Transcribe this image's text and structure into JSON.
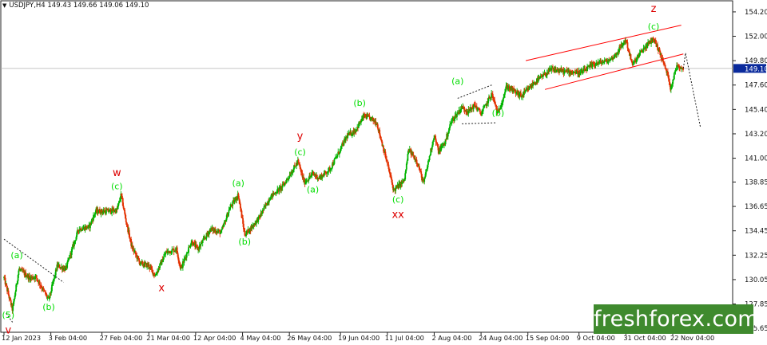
{
  "header": {
    "symbol_line": "USDJPY,H4  149.43 149.66 149.06 149.10",
    "triangle_icon": "triangle-down-icon"
  },
  "logo": {
    "text": "freshforex.com",
    "background": "#3f8a2e"
  },
  "chart_data": {
    "type": "candlestick",
    "symbol": "USDJPY",
    "timeframe": "H4",
    "ohlc_last": {
      "open": 149.43,
      "high": 149.66,
      "low": 149.06,
      "close": 149.1
    },
    "current_price": 149.1,
    "ylim": [
      125.3,
      155.2
    ],
    "y_ticks": [
      154.2,
      152.0,
      149.8,
      147.6,
      145.4,
      143.2,
      141.0,
      138.85,
      136.65,
      134.45,
      132.25,
      130.05,
      127.85,
      125.65
    ],
    "x_ticks": [
      "12 Jan 2023",
      "3 Feb 04:00",
      "27 Feb 04:00",
      "21 Mar 04:00",
      "12 Apr 04:00",
      "4 May 04:00",
      "26 May 04:00",
      "19 Jun 04:00",
      "11 Jul 04:00",
      "2 Aug 04:00",
      "24 Aug 04:00",
      "15 Sep 04:00",
      "9 Oct 04:00",
      "31 Oct 04:00",
      "22 Nov 04:00"
    ],
    "x_tick_dates": [
      "2023-01-12",
      "2023-02-03",
      "2023-02-27",
      "2023-03-21",
      "2023-04-12",
      "2023-05-04",
      "2023-05-26",
      "2023-06-19",
      "2023-07-11",
      "2023-08-02",
      "2023-08-24",
      "2023-09-15",
      "2023-10-09",
      "2023-10-31",
      "2023-11-22"
    ],
    "price_path": [
      [
        "2023-01-12",
        130.2
      ],
      [
        "2023-01-16",
        127.3
      ],
      [
        "2023-01-19",
        131.0
      ],
      [
        "2023-01-24",
        130.2
      ],
      [
        "2023-01-27",
        130.3
      ],
      [
        "2023-02-02",
        128.2
      ],
      [
        "2023-02-06",
        131.3
      ],
      [
        "2023-02-10",
        131.0
      ],
      [
        "2023-02-16",
        134.6
      ],
      [
        "2023-02-21",
        134.8
      ],
      [
        "2023-02-24",
        136.2
      ],
      [
        "2023-02-28",
        136.2
      ],
      [
        "2023-03-06",
        136.3
      ],
      [
        "2023-03-08",
        137.7
      ],
      [
        "2023-03-10",
        135.6
      ],
      [
        "2023-03-13",
        133.0
      ],
      [
        "2023-03-17",
        131.5
      ],
      [
        "2023-03-21",
        131.3
      ],
      [
        "2023-03-24",
        130.4
      ],
      [
        "2023-03-29",
        132.5
      ],
      [
        "2023-04-03",
        132.8
      ],
      [
        "2023-04-05",
        131.0
      ],
      [
        "2023-04-10",
        133.5
      ],
      [
        "2023-04-13",
        132.8
      ],
      [
        "2023-04-19",
        134.6
      ],
      [
        "2023-04-24",
        134.3
      ],
      [
        "2023-04-28",
        136.5
      ],
      [
        "2023-05-02",
        137.7
      ],
      [
        "2023-05-05",
        134.1
      ],
      [
        "2023-05-08",
        134.7
      ],
      [
        "2023-05-12",
        135.7
      ],
      [
        "2023-05-17",
        137.5
      ],
      [
        "2023-05-23",
        138.5
      ],
      [
        "2023-05-30",
        140.7
      ],
      [
        "2023-06-02",
        138.8
      ],
      [
        "2023-06-06",
        139.6
      ],
      [
        "2023-06-09",
        139.2
      ],
      [
        "2023-06-14",
        140.0
      ],
      [
        "2023-06-19",
        141.8
      ],
      [
        "2023-06-22",
        143.0
      ],
      [
        "2023-06-26",
        143.5
      ],
      [
        "2023-06-30",
        144.8
      ],
      [
        "2023-07-03",
        144.6
      ],
      [
        "2023-07-06",
        144.2
      ],
      [
        "2023-07-11",
        140.5
      ],
      [
        "2023-07-14",
        138.1
      ],
      [
        "2023-07-19",
        139.0
      ],
      [
        "2023-07-21",
        141.8
      ],
      [
        "2023-07-25",
        140.7
      ],
      [
        "2023-07-28",
        138.7
      ],
      [
        "2023-08-02",
        143.1
      ],
      [
        "2023-08-04",
        141.6
      ],
      [
        "2023-08-07",
        142.4
      ],
      [
        "2023-08-10",
        144.3
      ],
      [
        "2023-08-15",
        145.6
      ],
      [
        "2023-08-18",
        145.2
      ],
      [
        "2023-08-21",
        145.8
      ],
      [
        "2023-08-24",
        145.0
      ],
      [
        "2023-08-29",
        146.8
      ],
      [
        "2023-09-01",
        145.0
      ],
      [
        "2023-09-05",
        147.5
      ],
      [
        "2023-09-12",
        146.6
      ],
      [
        "2023-09-18",
        147.8
      ],
      [
        "2023-09-26",
        149.0
      ],
      [
        "2023-10-03",
        148.8
      ],
      [
        "2023-10-05",
        148.8
      ],
      [
        "2023-10-10",
        148.7
      ],
      [
        "2023-10-16",
        149.5
      ],
      [
        "2023-10-23",
        149.8
      ],
      [
        "2023-10-26",
        150.3
      ],
      [
        "2023-10-31",
        151.7
      ],
      [
        "2023-11-03",
        149.4
      ],
      [
        "2023-11-08",
        150.8
      ],
      [
        "2023-11-13",
        151.8
      ],
      [
        "2023-11-16",
        150.5
      ],
      [
        "2023-11-20",
        148.3
      ],
      [
        "2023-11-21",
        147.3
      ],
      [
        "2023-11-24",
        149.4
      ],
      [
        "2023-11-27",
        149.1
      ]
    ],
    "forecast_path": [
      [
        "2023-11-28",
        150.5
      ],
      [
        "2023-12-05",
        143.8
      ]
    ],
    "trend_lines": [
      {
        "name": "resistance_channel_upper",
        "style": "solid",
        "color": "#ff0000",
        "points": [
          [
            "2023-09-14",
            149.8
          ],
          [
            "2023-11-26",
            153.0
          ]
        ]
      },
      {
        "name": "resistance_channel_lower",
        "style": "solid",
        "color": "#ff0000",
        "points": [
          [
            "2023-09-23",
            147.2
          ],
          [
            "2023-11-27",
            150.4
          ]
        ]
      },
      {
        "name": "flag_upper",
        "style": "dotted",
        "color": "#222222",
        "points": [
          [
            "2023-08-13",
            146.4
          ],
          [
            "2023-08-29",
            147.6
          ]
        ]
      },
      {
        "name": "flag_lower",
        "style": "dotted",
        "color": "#222222",
        "points": [
          [
            "2023-08-15",
            144.1
          ],
          [
            "2023-08-31",
            144.2
          ]
        ]
      },
      {
        "name": "start_trendline",
        "style": "dotted",
        "color": "#222222",
        "points": [
          [
            "2023-01-12",
            133.7
          ],
          [
            "2023-02-09",
            129.8
          ]
        ]
      },
      {
        "name": "start_trendline_lower",
        "style": "dotted",
        "color": "#222222",
        "points": [
          [
            "2023-01-13",
            127.0
          ],
          [
            "2023-01-16",
            126.2
          ]
        ]
      }
    ],
    "wave_labels": [
      {
        "text": "(5)",
        "color": "#00dd00",
        "date": "2023-01-14",
        "price": 126.6
      },
      {
        "text": "v",
        "color": "#dd0000",
        "date": "2023-01-14",
        "price": 125.2
      },
      {
        "text": "(a)",
        "color": "#00dd00",
        "date": "2023-01-18",
        "price": 132.0
      },
      {
        "text": "(b)",
        "color": "#00dd00",
        "date": "2023-02-02",
        "price": 127.3
      },
      {
        "text": "w",
        "color": "#dd0000",
        "date": "2023-03-06",
        "price": 139.4
      },
      {
        "text": "(c)",
        "color": "#00dd00",
        "date": "2023-03-06",
        "price": 138.2
      },
      {
        "text": "x",
        "color": "#dd0000",
        "date": "2023-03-27",
        "price": 129.0
      },
      {
        "text": "(a)",
        "color": "#00dd00",
        "date": "2023-05-02",
        "price": 138.5
      },
      {
        "text": "(b)",
        "color": "#00dd00",
        "date": "2023-05-05",
        "price": 133.2
      },
      {
        "text": "y",
        "color": "#dd0000",
        "date": "2023-05-31",
        "price": 142.7
      },
      {
        "text": "(c)",
        "color": "#00dd00",
        "date": "2023-05-31",
        "price": 141.3
      },
      {
        "text": "(a)",
        "color": "#00dd00",
        "date": "2023-06-06",
        "price": 137.9
      },
      {
        "text": "(b)",
        "color": "#00dd00",
        "date": "2023-06-28",
        "price": 145.7
      },
      {
        "text": "(c)",
        "color": "#00dd00",
        "date": "2023-07-16",
        "price": 137.0
      },
      {
        "text": "xx",
        "color": "#dd0000",
        "date": "2023-07-16",
        "price": 135.6
      },
      {
        "text": "(a)",
        "color": "#00dd00",
        "date": "2023-08-13",
        "price": 147.7
      },
      {
        "text": "(b)",
        "color": "#00dd00",
        "date": "2023-09-01",
        "price": 144.8
      },
      {
        "text": "z",
        "color": "#dd0000",
        "date": "2023-11-13",
        "price": 154.2
      },
      {
        "text": "(c)",
        "color": "#00dd00",
        "date": "2023-11-13",
        "price": 152.6
      }
    ],
    "colors": {
      "up_candle": "#00b400",
      "down_candle": "#e33000",
      "wave_green": "#00dd00",
      "wave_red": "#dd0000",
      "price_marker": "#0a2a9c"
    },
    "grid": false,
    "legend": "none"
  }
}
